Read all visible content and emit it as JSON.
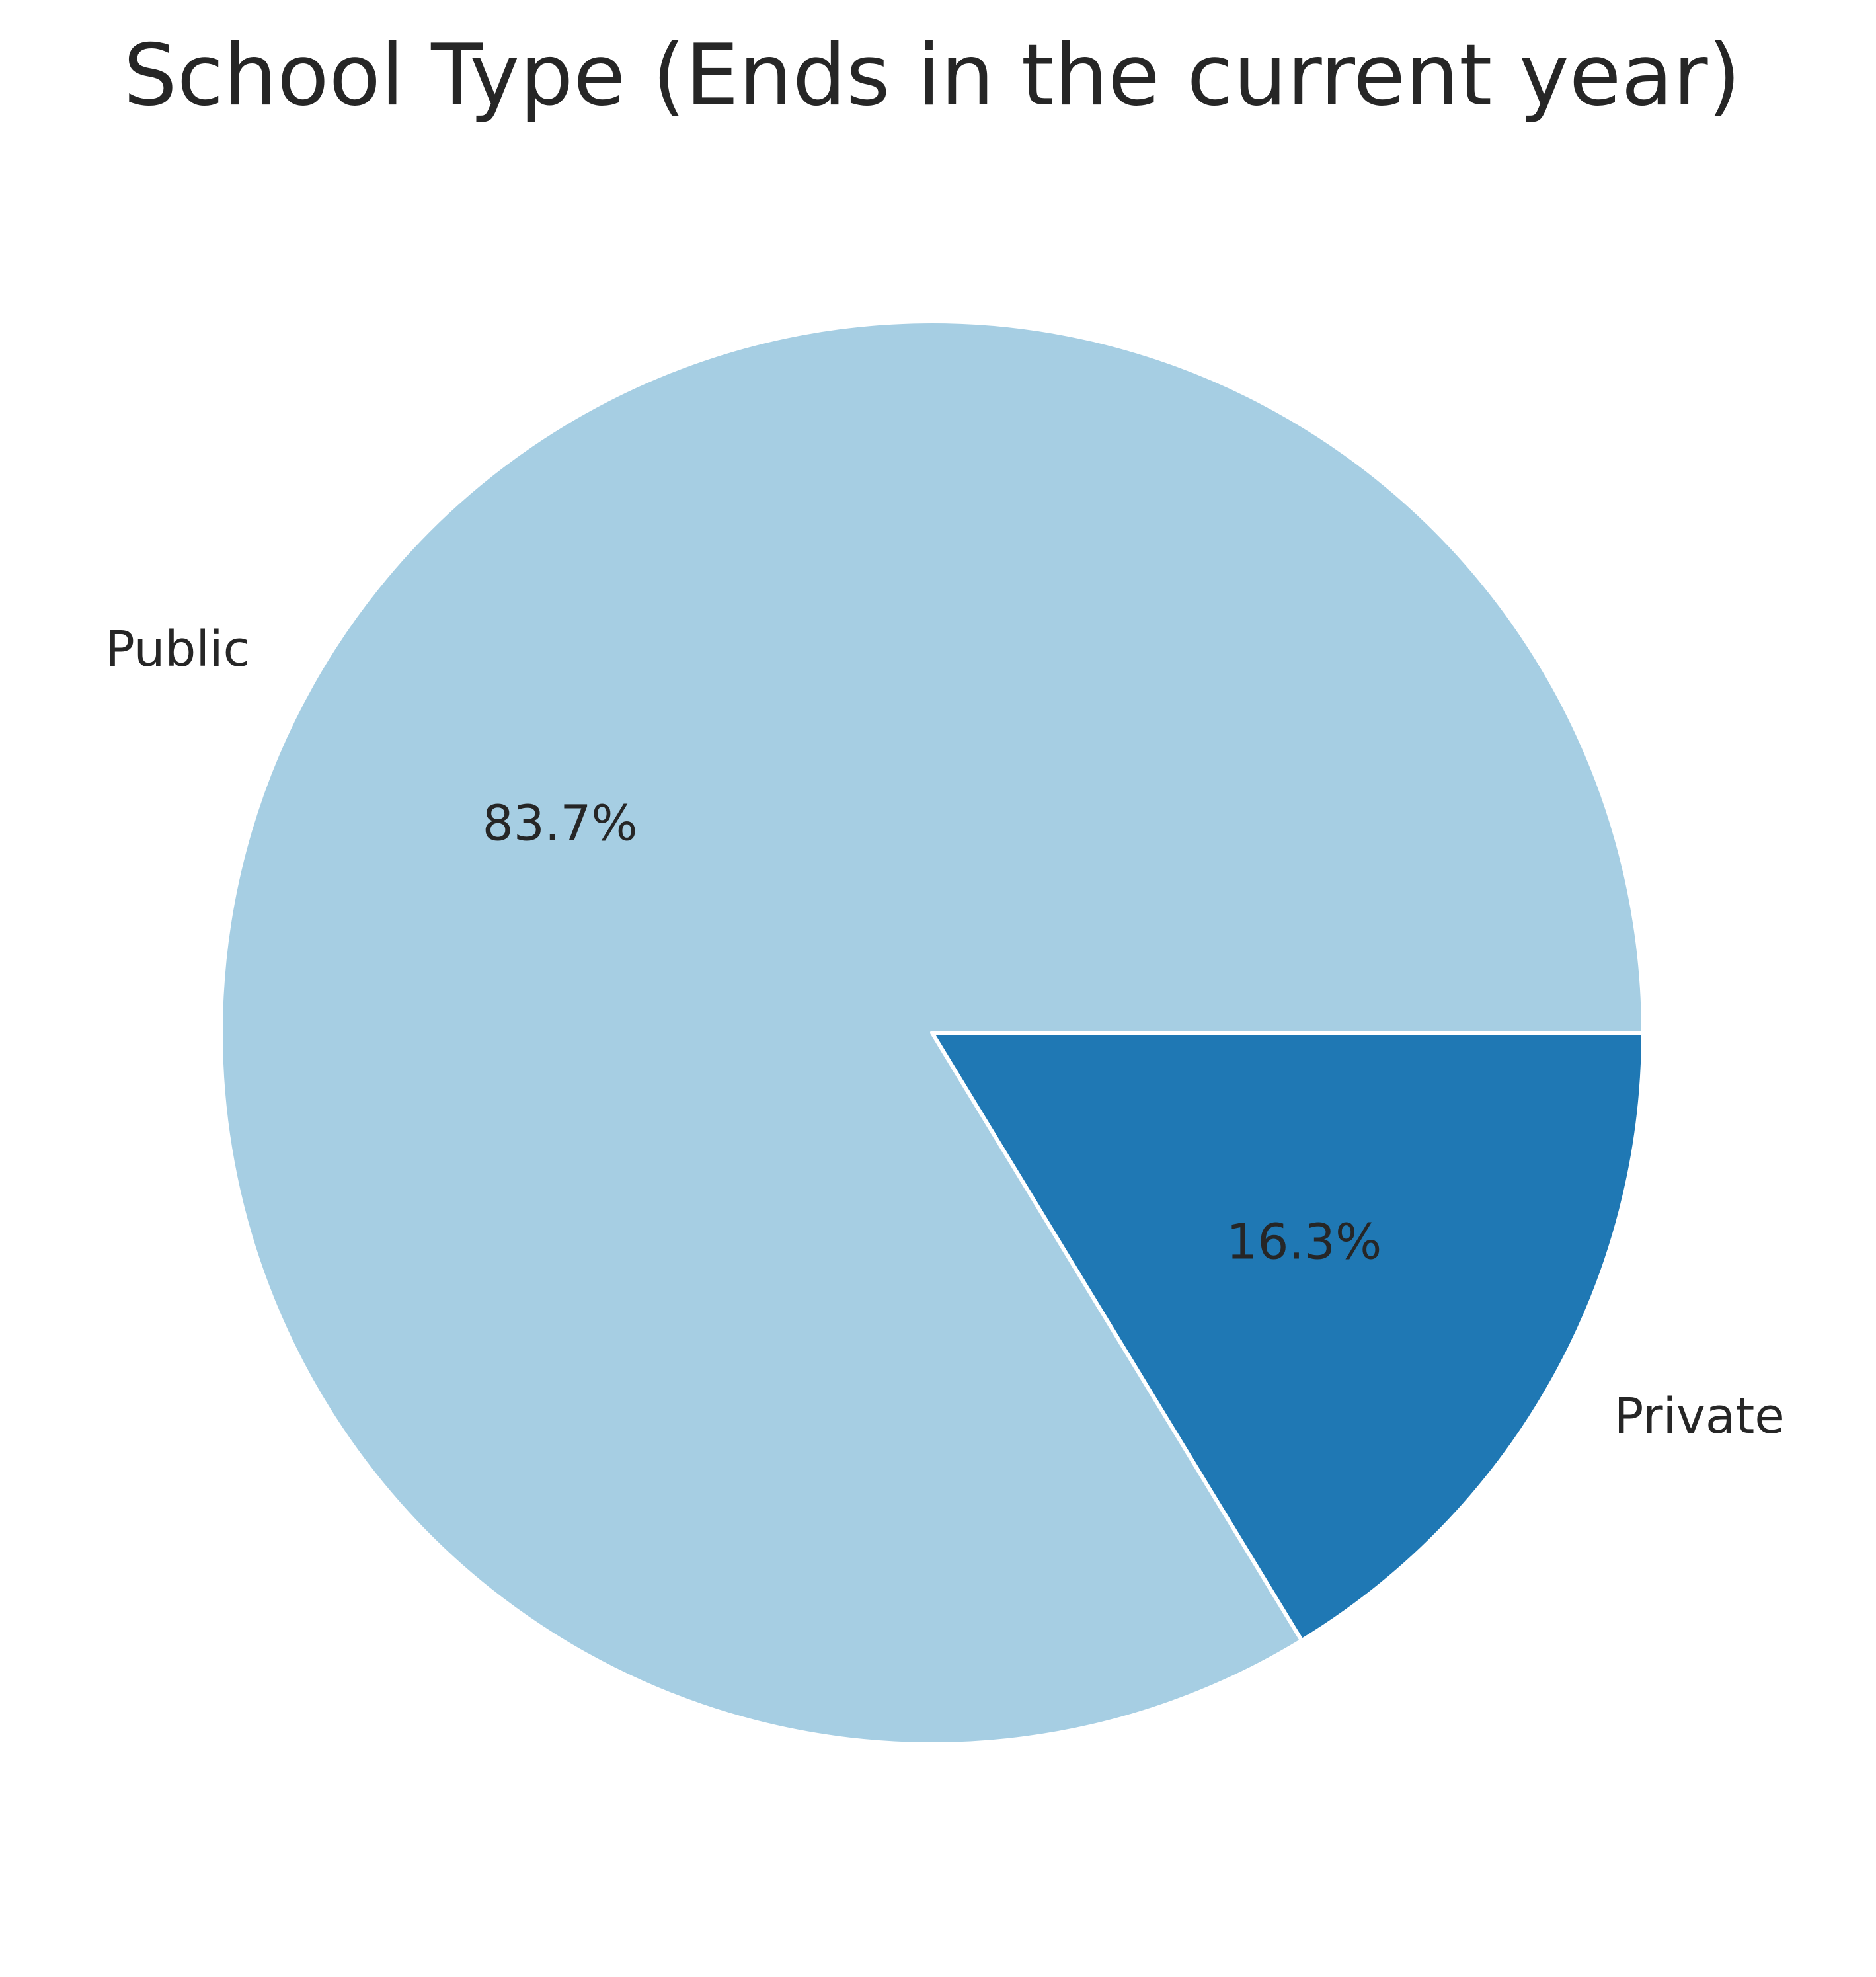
{
  "chart_data": {
    "type": "pie",
    "title": "School Type (Ends in the current year)",
    "categories": [
      "Public",
      "Private"
    ],
    "values": [
      83.7,
      16.3
    ],
    "value_labels": [
      "83.7%",
      "16.3%"
    ],
    "colors": [
      "#a6cee3",
      "#1f78b4"
    ],
    "start_angle_deg": 0,
    "direction": "counterclockwise",
    "edge_color": "#ffffff",
    "legend": "none"
  }
}
